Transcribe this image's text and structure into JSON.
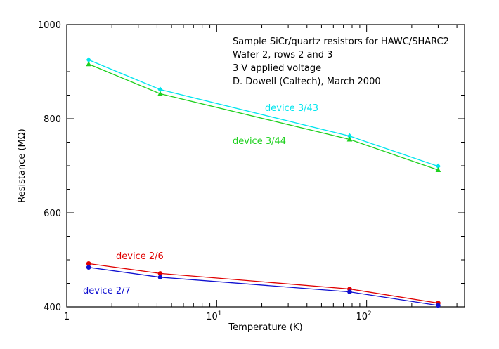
{
  "chart_data": {
    "type": "line",
    "xscale": "log",
    "xlim": [
      1,
      450
    ],
    "ylim": [
      400,
      1000
    ],
    "xlabel": "Temperature (K)",
    "ylabel": "Resistance (MΩ)",
    "grid": false,
    "x_ticks": [
      {
        "value": 1,
        "base": "1",
        "exp": ""
      },
      {
        "value": 10,
        "base": "10",
        "exp": "1"
      },
      {
        "value": 100,
        "base": "10",
        "exp": "2"
      }
    ],
    "y_ticks": [
      {
        "value": 400,
        "label": "400"
      },
      {
        "value": 600,
        "label": "600"
      },
      {
        "value": 800,
        "label": "800"
      },
      {
        "value": 1000,
        "label": "1000"
      }
    ],
    "annotation_lines": [
      "Sample SiCr/quartz resistors for HAWC/SHARC2",
      "Wafer 2, rows 2 and 3",
      "3 V applied voltage",
      "D. Dowell (Caltech), March 2000"
    ],
    "series": [
      {
        "name": "device 3/43",
        "color": "#00e5ee",
        "marker": "diamond",
        "x": [
          1.4,
          4.2,
          77,
          300
        ],
        "y": [
          925,
          862,
          763,
          699
        ]
      },
      {
        "name": "device 3/44",
        "color": "#1ed01e",
        "marker": "triangle",
        "x": [
          1.4,
          4.2,
          77,
          300
        ],
        "y": [
          916,
          853,
          756,
          691
        ]
      },
      {
        "name": "device 2/6",
        "color": "#e00000",
        "marker": "circle",
        "x": [
          1.4,
          4.2,
          77,
          300
        ],
        "y": [
          492,
          471,
          438,
          408
        ]
      },
      {
        "name": "device 2/7",
        "color": "#1010d0",
        "marker": "circle",
        "x": [
          1.4,
          4.2,
          77,
          300
        ],
        "y": [
          484,
          463,
          432,
          403
        ]
      }
    ]
  }
}
